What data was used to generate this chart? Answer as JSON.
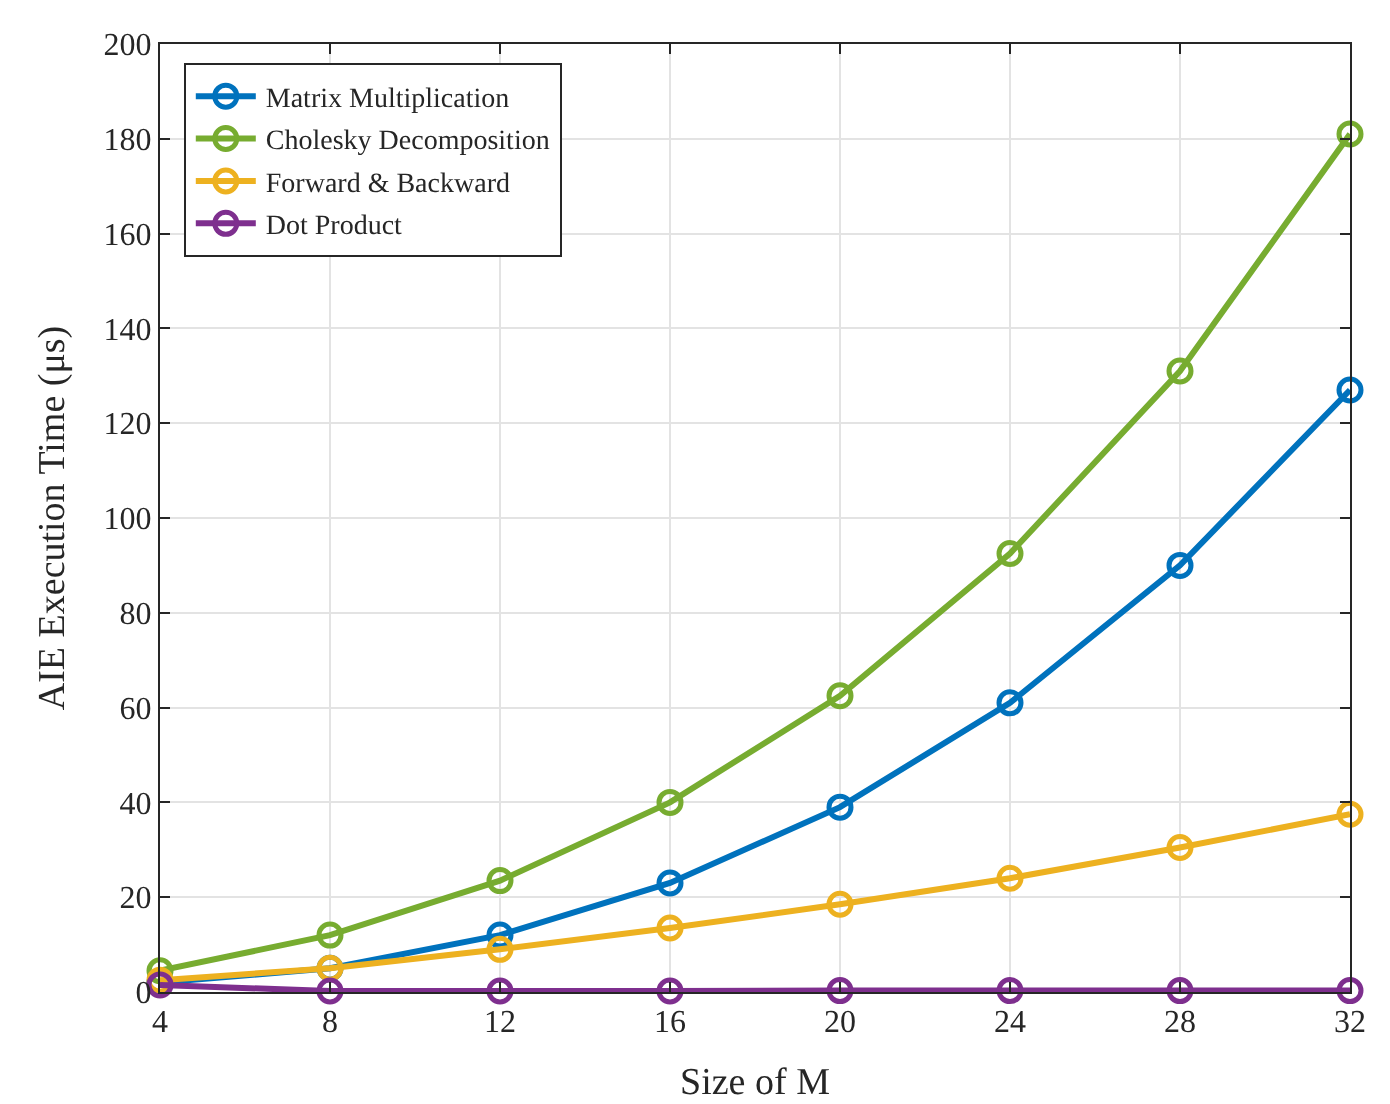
{
  "chart_data": {
    "type": "line",
    "xlabel": "Size of M",
    "ylabel": "AIE Execution Time (μs)",
    "x": [
      4,
      8,
      12,
      16,
      20,
      24,
      28,
      32
    ],
    "series": [
      {
        "name": "Matrix Multiplication",
        "color": "#0072bd",
        "values": [
          2,
          5,
          12,
          23,
          39,
          61,
          90,
          127
        ]
      },
      {
        "name": "Cholesky Decomposition",
        "color": "#77ac30",
        "values": [
          4.5,
          12,
          23.5,
          40,
          62.5,
          92.5,
          131,
          181
        ]
      },
      {
        "name": "Forward & Backward",
        "color": "#edb120",
        "values": [
          2.5,
          5,
          9,
          13.5,
          18.5,
          24,
          30.5,
          37.5
        ]
      },
      {
        "name": "Dot Product",
        "color": "#7e2f8e",
        "values": [
          1.5,
          0.2,
          0.2,
          0.2,
          0.3,
          0.3,
          0.3,
          0.3
        ]
      }
    ],
    "xlim": [
      4,
      32
    ],
    "xticks": [
      4,
      8,
      12,
      16,
      20,
      24,
      28,
      32
    ],
    "ylim": [
      0,
      200
    ],
    "yticks": [
      0,
      20,
      40,
      60,
      80,
      100,
      120,
      140,
      160,
      180,
      200
    ],
    "grid": true,
    "legend": "top left",
    "marker": "circle",
    "line_style": "solid"
  }
}
